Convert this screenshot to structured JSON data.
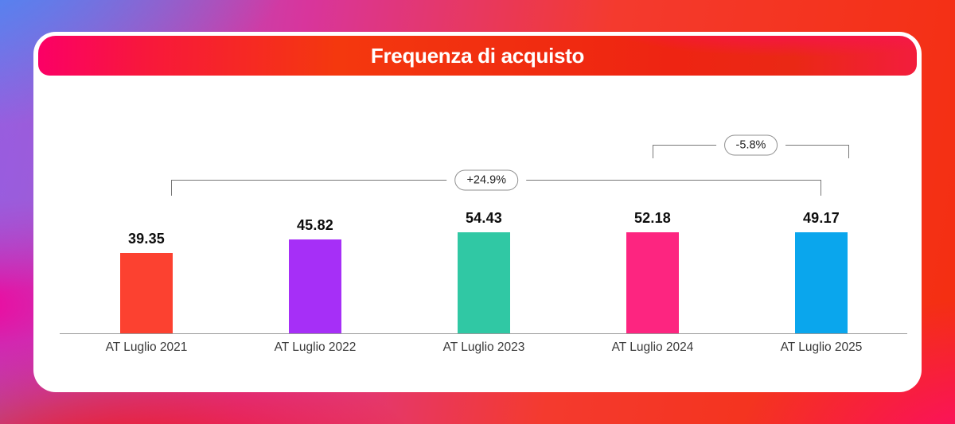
{
  "header": {
    "title": "Frequenza di acquisto"
  },
  "chart_data": {
    "type": "bar",
    "title": "Frequenza di acquisto",
    "categories": [
      "AT Luglio 2021",
      "AT Luglio 2022",
      "AT Luglio 2023",
      "AT Luglio 2024",
      "AT Luglio 2025"
    ],
    "values": [
      39.35,
      45.82,
      54.43,
      52.18,
      49.17
    ],
    "value_labels": [
      "39.35",
      "45.82",
      "54.43",
      "52.18",
      "49.17"
    ],
    "bar_colors": [
      "#fc4130",
      "#a62ff7",
      "#30c8a4",
      "#fd2580",
      "#0aa6ed"
    ],
    "xlabel": "",
    "ylabel": "",
    "ylim": [
      0,
      60
    ],
    "grid": false,
    "legend": false,
    "annotations": [
      {
        "label": "+24.9%",
        "from_category": "AT Luglio 2021",
        "to_category": "AT Luglio 2025"
      },
      {
        "label": "-5.8%",
        "from_category": "AT Luglio 2024",
        "to_category": "AT Luglio 2025"
      }
    ]
  }
}
